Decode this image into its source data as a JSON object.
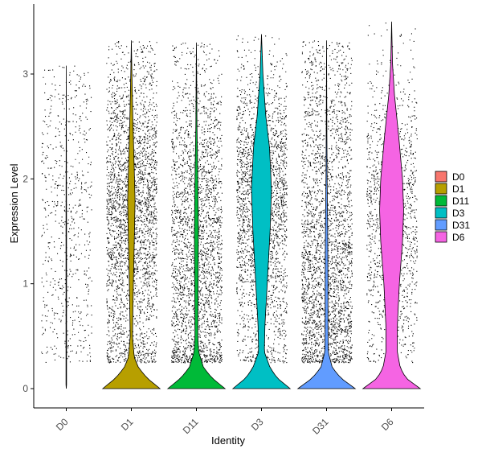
{
  "chart_data": {
    "type": "violin",
    "xlabel": "Identity",
    "ylabel": "Expression Level",
    "ylim": [
      -0.2,
      3.55
    ],
    "y_ticks": [
      0,
      1,
      2,
      3
    ],
    "grid": false,
    "legend_position": "right",
    "categories": [
      "D0",
      "D1",
      "D11",
      "D3",
      "D31",
      "D6"
    ],
    "colors": [
      "#F8766D",
      "#B79F00",
      "#00BA38",
      "#00BFC4",
      "#619CFF",
      "#F564E3"
    ],
    "groups": [
      {
        "name": "D0",
        "max": 3.08,
        "zero_width": 0.43,
        "point_count": 650,
        "density": [
          [
            0,
            0
          ],
          [
            0.02,
            1
          ],
          [
            0.03,
            0.01
          ],
          [
            1.5,
            0.01
          ],
          [
            3.08,
            0.0
          ]
        ]
      },
      {
        "name": "D1",
        "max": 3.32,
        "zero_width": 0.43,
        "point_count": 2800,
        "density": [
          [
            0,
            1
          ],
          [
            0.1,
            0.55
          ],
          [
            0.2,
            0.25
          ],
          [
            0.3,
            0.1
          ],
          [
            0.5,
            0.04
          ],
          [
            1.0,
            0.07
          ],
          [
            1.5,
            0.11
          ],
          [
            1.8,
            0.13
          ],
          [
            2.2,
            0.09
          ],
          [
            2.6,
            0.05
          ],
          [
            3.0,
            0.02
          ],
          [
            3.32,
            0.0
          ]
        ]
      },
      {
        "name": "D11",
        "max": 3.3,
        "zero_width": 0.43,
        "point_count": 2500,
        "density": [
          [
            0,
            1
          ],
          [
            0.1,
            0.55
          ],
          [
            0.2,
            0.25
          ],
          [
            0.35,
            0.08
          ],
          [
            0.5,
            0.05
          ],
          [
            1.0,
            0.06
          ],
          [
            1.5,
            0.07
          ],
          [
            2.0,
            0.05
          ],
          [
            2.5,
            0.02
          ],
          [
            3.3,
            0.0
          ]
        ]
      },
      {
        "name": "D3",
        "max": 3.38,
        "zero_width": 0.43,
        "point_count": 2400,
        "density": [
          [
            0,
            1
          ],
          [
            0.1,
            0.55
          ],
          [
            0.2,
            0.3
          ],
          [
            0.35,
            0.1
          ],
          [
            0.6,
            0.12
          ],
          [
            1.0,
            0.2
          ],
          [
            1.5,
            0.3
          ],
          [
            1.9,
            0.35
          ],
          [
            2.3,
            0.28
          ],
          [
            2.6,
            0.15
          ],
          [
            3.0,
            0.05
          ],
          [
            3.38,
            0.0
          ]
        ]
      },
      {
        "name": "D31",
        "max": 3.32,
        "zero_width": 0.43,
        "point_count": 2700,
        "density": [
          [
            0,
            1
          ],
          [
            0.1,
            0.5
          ],
          [
            0.2,
            0.2
          ],
          [
            0.35,
            0.06
          ],
          [
            0.6,
            0.05
          ],
          [
            1.0,
            0.05
          ],
          [
            1.5,
            0.04
          ],
          [
            2.0,
            0.02
          ],
          [
            2.5,
            0.01
          ],
          [
            3.32,
            0.0
          ]
        ]
      },
      {
        "name": "D6",
        "max": 3.5,
        "zero_width": 0.43,
        "point_count": 1300,
        "density": [
          [
            0,
            1
          ],
          [
            0.1,
            0.5
          ],
          [
            0.2,
            0.3
          ],
          [
            0.35,
            0.2
          ],
          [
            0.6,
            0.2
          ],
          [
            1.0,
            0.27
          ],
          [
            1.4,
            0.38
          ],
          [
            1.7,
            0.42
          ],
          [
            2.0,
            0.38
          ],
          [
            2.4,
            0.25
          ],
          [
            2.8,
            0.1
          ],
          [
            3.1,
            0.03
          ],
          [
            3.5,
            0.0
          ]
        ]
      }
    ]
  }
}
